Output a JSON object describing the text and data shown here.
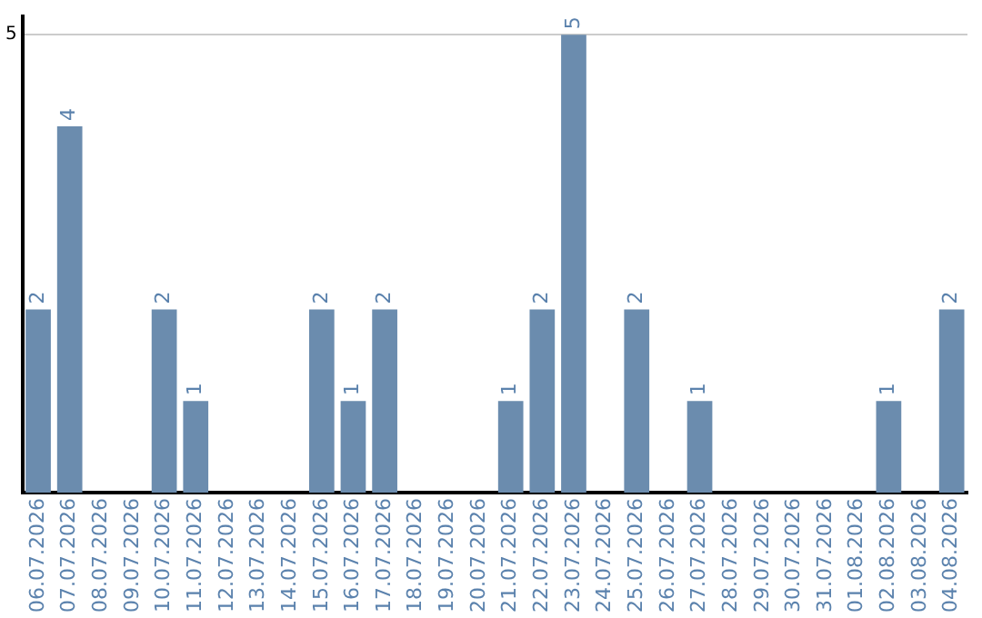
{
  "chart_data": {
    "type": "bar",
    "categories": [
      "06.07.2026",
      "07.07.2026",
      "08.07.2026",
      "09.07.2026",
      "10.07.2026",
      "11.07.2026",
      "12.07.2026",
      "13.07.2026",
      "14.07.2026",
      "15.07.2026",
      "16.07.2026",
      "17.07.2026",
      "18.07.2026",
      "19.07.2026",
      "20.07.2026",
      "21.07.2026",
      "22.07.2026",
      "23.07.2026",
      "24.07.2026",
      "25.07.2026",
      "26.07.2026",
      "27.07.2026",
      "28.07.2026",
      "29.07.2026",
      "30.07.2026",
      "31.07.2026",
      "01.08.2026",
      "02.08.2026",
      "03.08.2026",
      "04.08.2026"
    ],
    "values": [
      2,
      4,
      0,
      0,
      2,
      1,
      0,
      0,
      0,
      2,
      1,
      2,
      0,
      0,
      0,
      1,
      2,
      5,
      0,
      2,
      0,
      1,
      0,
      0,
      0,
      0,
      0,
      1,
      0,
      2
    ],
    "value_labels": [
      "2",
      "4",
      null,
      null,
      "2",
      "1",
      null,
      null,
      null,
      "2",
      "1",
      "2",
      null,
      null,
      null,
      "1",
      "2",
      "5",
      null,
      "2",
      null,
      "1",
      null,
      null,
      null,
      null,
      null,
      "1",
      null,
      "2"
    ],
    "color": "#6b8cae",
    "ylim": [
      0,
      5.2
    ],
    "yticks": [
      5
    ],
    "grid": "y",
    "legend": false
  }
}
